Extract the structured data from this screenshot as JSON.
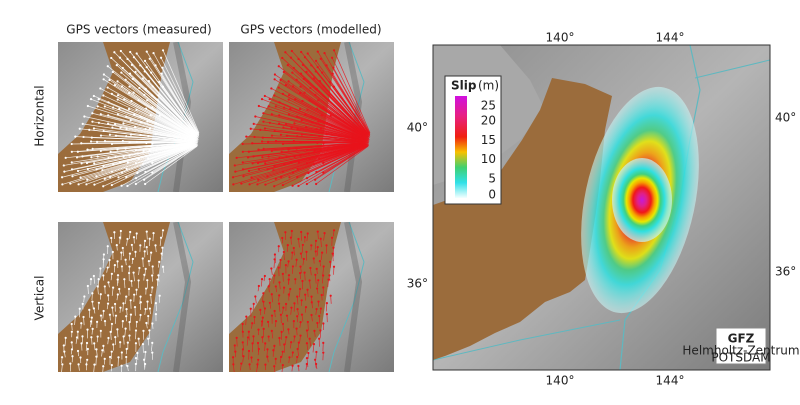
{
  "panels": {
    "columns": [
      "GPS vectors (measured)",
      "GPS vectors (modelled)"
    ],
    "rows": [
      "Horizontal",
      "Vertical"
    ]
  },
  "map": {
    "top_labels": [
      "140°",
      "144°"
    ],
    "bottom_labels": [
      "140°",
      "144°"
    ],
    "left_labels": [
      "40°",
      "36°"
    ],
    "right_labels": [
      "40°",
      "36°"
    ],
    "legend": {
      "title": "Slip",
      "unit": "(m)",
      "ticks": [
        25,
        20,
        15,
        10,
        5,
        0
      ]
    }
  },
  "logo": {
    "name": "GFZ",
    "line1": "Helmholtz-Zentrum",
    "line2": "POTSDAM"
  }
}
